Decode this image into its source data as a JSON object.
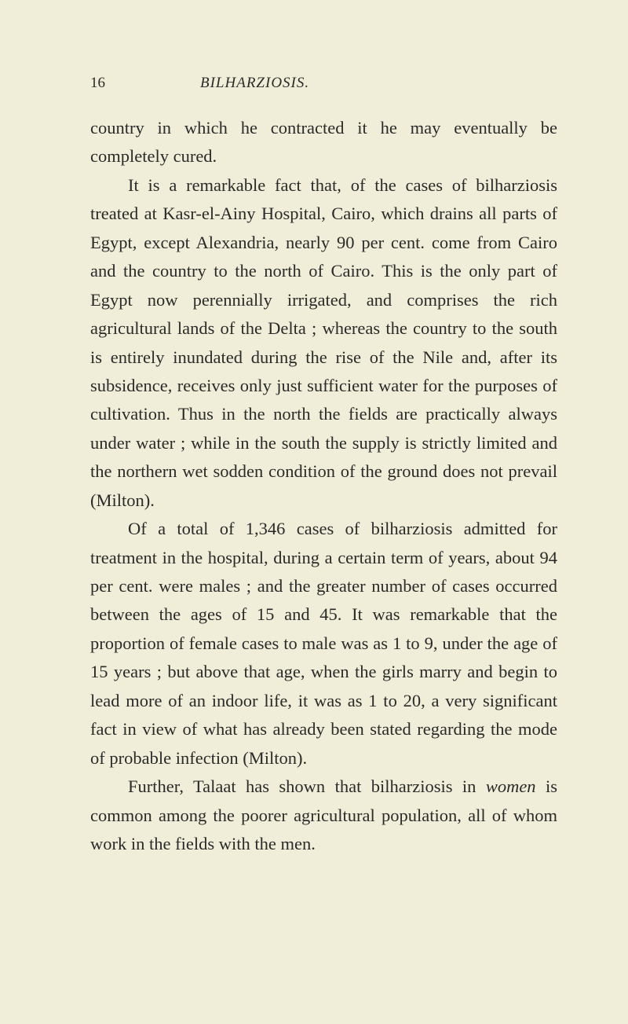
{
  "header": {
    "page_number": "16",
    "running_title": "BILHARZIOSIS."
  },
  "paragraphs": {
    "p1": "country in which he contracted it he may eventually be completely cured.",
    "p2": "It is a remarkable fact that, of the cases of bilharziosis treated at Kasr-el-Ainy Hospital, Cairo, which drains all parts of Egypt, except Alexandria, nearly 90 per cent. come from Cairo and the country to the north of Cairo. This is the only part of Egypt now perennially irrigated, and comprises the rich agricultural lands of the Delta ; whereas the country to the south is entirely inundated during the rise of the Nile and, after its subsidence, receives only just sufficient water for the purposes of cultivation. Thus in the north the fields are practically always under water ; while in the south the supply is strictly limited and the northern wet sodden condition of the ground does not prevail (Milton).",
    "p3": "Of a total of 1,346 cases of bilharziosis admitted for treatment in the hospital, during a certain term of years, about 94 per cent. were males ; and the greater number of cases occurred between the ages of 15 and 45. It was remarkable that the proportion of female cases to male was as 1 to 9, under the age of 15 years ; but above that age, when the girls marry and begin to lead more of an indoor life, it was as 1 to 20, a very significant fact in view of what has already been stated regarding the mode of probable infection (Milton).",
    "p4_prefix": "Further, Talaat has shown that bilharziosis in ",
    "p4_italic": "women",
    "p4_suffix": " is common among the poorer agricultural population, all of whom work in the fields with the men."
  }
}
